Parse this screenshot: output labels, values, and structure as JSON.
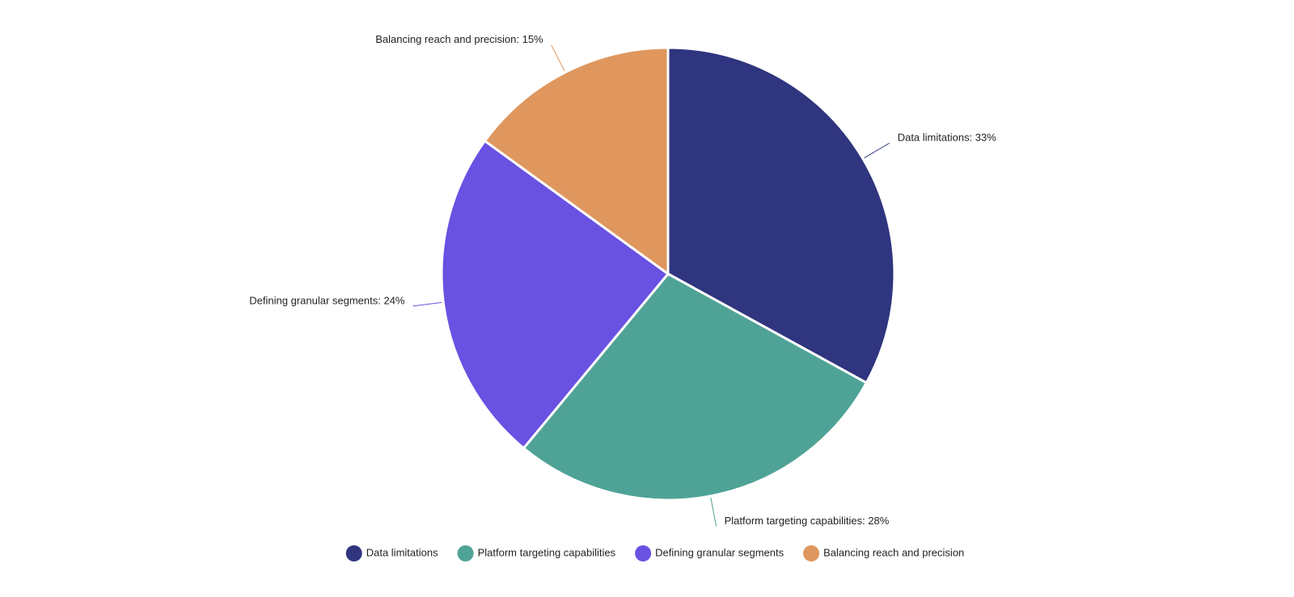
{
  "chart_data": {
    "type": "pie",
    "categories": [
      "Data limitations",
      "Platform targeting capabilities",
      "Defining granular segments",
      "Balancing reach and precision"
    ],
    "values": [
      33,
      28,
      24,
      15
    ],
    "value_labels": [
      "Data limitations: 33%",
      "Platform targeting capabilities: 28%",
      "Defining granular segments: 24%",
      "Balancing reach and precision: 15%"
    ],
    "colors": [
      "#2f357e",
      "#4fa396",
      "#6951e2",
      "#df975e"
    ],
    "legend": "bottom"
  }
}
